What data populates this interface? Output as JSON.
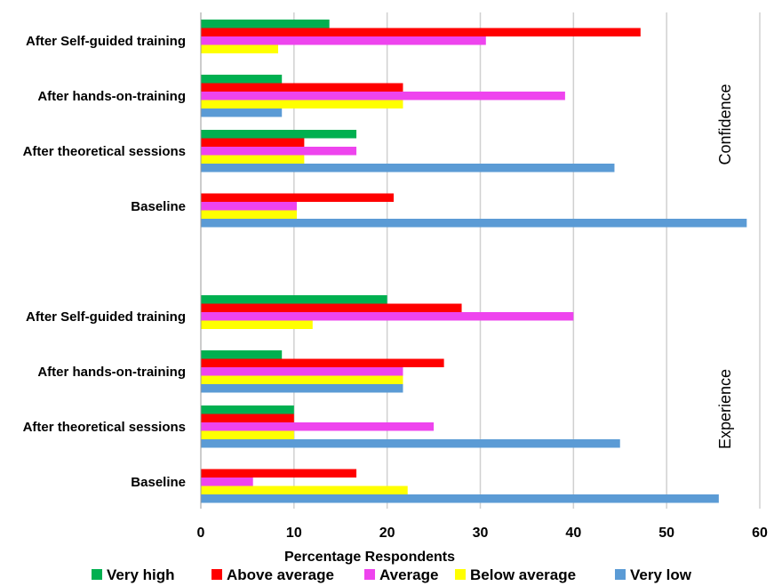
{
  "chart_data": {
    "type": "bar",
    "orientation": "horizontal",
    "xlabel": "Percentage Respondents",
    "xlim": [
      0,
      60
    ],
    "xticks": [
      "0",
      "10",
      "20",
      "30",
      "40",
      "50",
      "60"
    ],
    "grid": true,
    "legend_position": "bottom",
    "series": [
      {
        "name": "Very high",
        "color": "#00B050"
      },
      {
        "name": "Above average",
        "color": "#FF0000"
      },
      {
        "name": "Average",
        "color": "#EE44EE"
      },
      {
        "name": "Below average",
        "color": "#FFFF00"
      },
      {
        "name": "Very low",
        "color": "#5B9BD5"
      }
    ],
    "groups": [
      {
        "label": "Confidence",
        "categories": [
          {
            "label": "After Self-guided training",
            "values": [
              13.8,
              47.2,
              30.6,
              8.3,
              0
            ]
          },
          {
            "label": "After hands-on-training",
            "values": [
              8.7,
              21.7,
              39.1,
              21.7,
              8.7
            ]
          },
          {
            "label": "After theoretical sessions",
            "values": [
              16.7,
              11.1,
              16.7,
              11.1,
              44.4
            ]
          },
          {
            "label": "Baseline",
            "values": [
              0,
              20.7,
              10.3,
              10.3,
              58.6
            ]
          }
        ]
      },
      {
        "label": "Experience",
        "categories": [
          {
            "label": "After Self-guided training",
            "values": [
              20,
              28,
              40,
              12,
              0
            ]
          },
          {
            "label": "After hands-on-training",
            "values": [
              8.7,
              26.1,
              21.7,
              21.7,
              21.7
            ]
          },
          {
            "label": "After theoretical sessions",
            "values": [
              10,
              10,
              25,
              10,
              45
            ]
          },
          {
            "label": "Baseline",
            "values": [
              0,
              16.7,
              5.6,
              22.2,
              55.6
            ]
          }
        ]
      }
    ]
  }
}
